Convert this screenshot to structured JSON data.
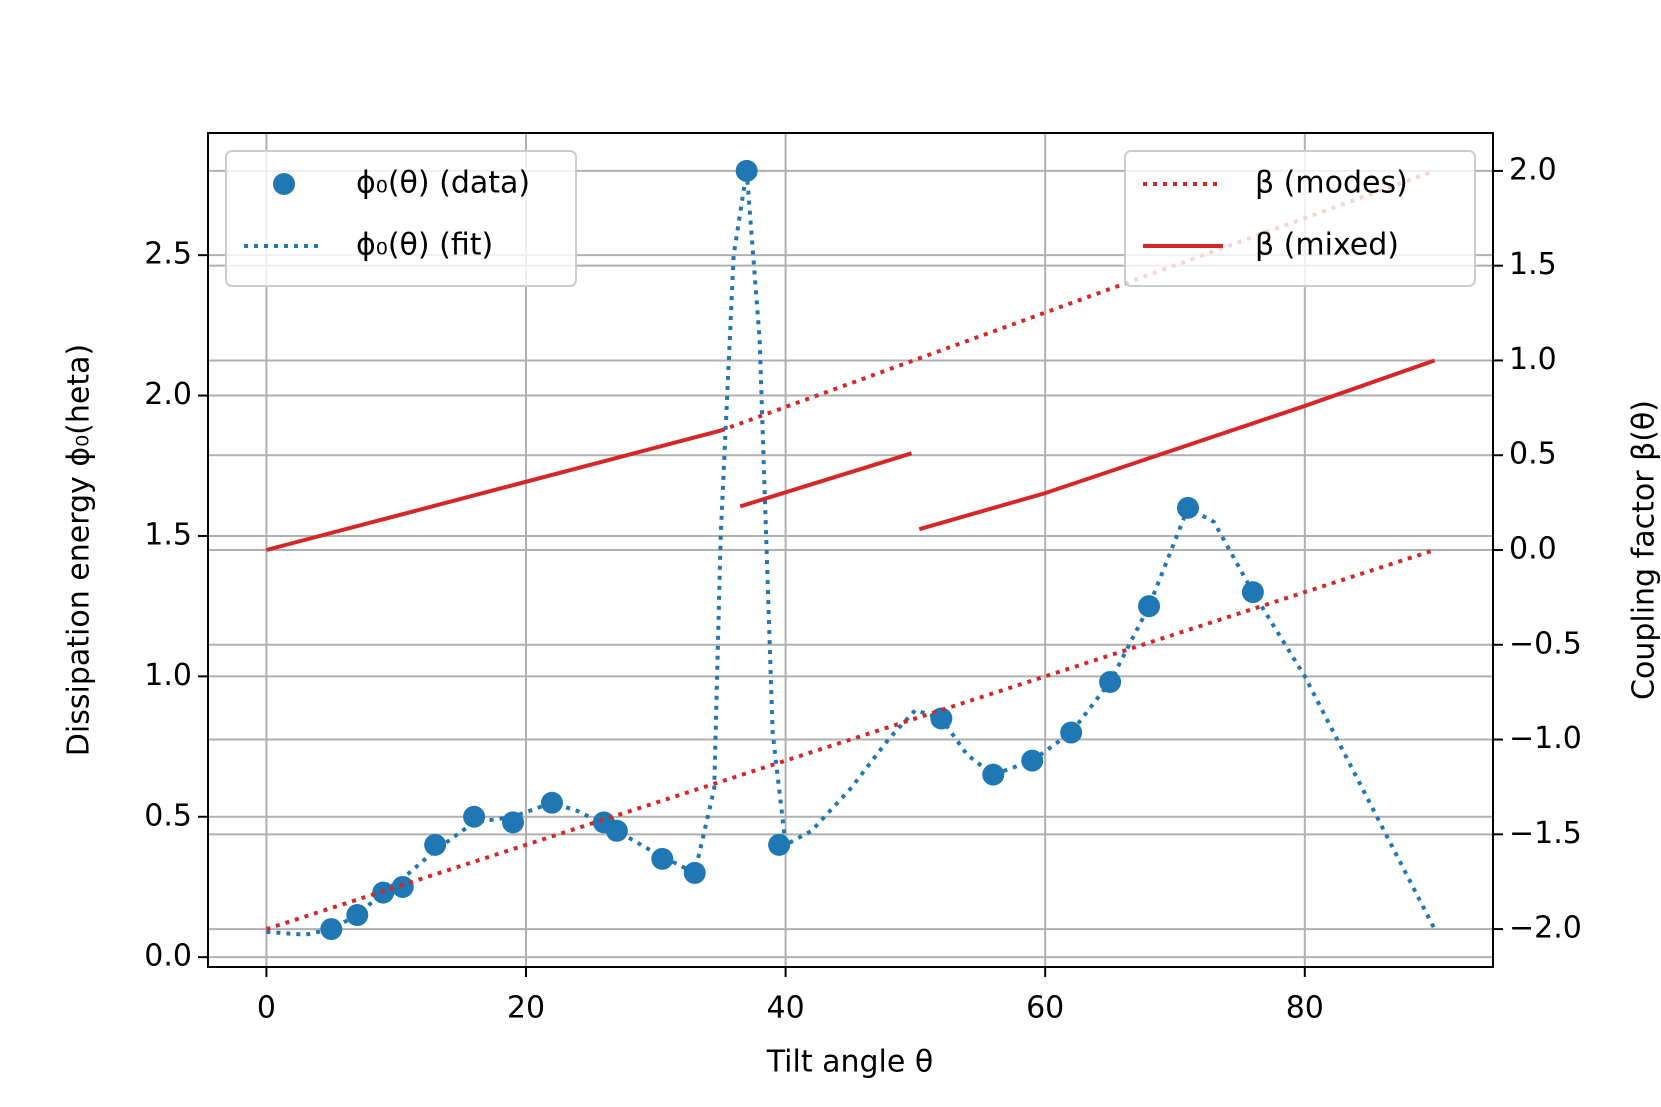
{
  "chart_data": {
    "type": "line",
    "xlabel": "Tilt angle θ",
    "ylabel": "Dissipation energy ϕ₀(heta)",
    "y2label": "Coupling factor β(θ)",
    "xlim": [
      -4.5,
      94.5
    ],
    "ylim": [
      -0.035,
      2.935
    ],
    "y2lim": [
      -2.2,
      2.2
    ],
    "xticks": [
      0,
      20,
      40,
      60,
      80
    ],
    "yticks": [
      {
        "value": 0,
        "label": "0.0"
      },
      0.5,
      {
        "value": 1,
        "label": "1.0"
      },
      1.5,
      {
        "value": 2,
        "label": "2.0"
      },
      2.5
    ],
    "y2ticks": [
      {
        "value": -2,
        "label": "−2.0"
      },
      {
        "value": -1.5,
        "label": "−1.5"
      },
      {
        "value": -1,
        "label": "−1.0"
      },
      {
        "value": -0.5,
        "label": "−0.5"
      },
      {
        "value": 0,
        "label": "0.0"
      },
      0.5,
      {
        "value": 1,
        "label": "1.0"
      },
      1.5,
      {
        "value": 2,
        "label": "2.0"
      }
    ],
    "grid": true,
    "legend": "upper left",
    "legend2": "upper right",
    "series": [
      {
        "name": "ϕ₀(θ) (data)",
        "color": "#1f77b4",
        "linestyle": "none",
        "marker": "o",
        "axis": "y",
        "x": [
          5,
          7,
          9,
          10.5,
          13,
          16,
          19,
          22,
          26,
          27,
          30.5,
          33,
          37,
          39.5,
          52,
          56,
          59,
          62,
          65,
          68,
          71,
          76
        ],
        "values": [
          0.1,
          0.15,
          0.23,
          0.25,
          0.4,
          0.5,
          0.48,
          0.55,
          0.48,
          0.45,
          0.35,
          0.3,
          2.8,
          0.4,
          0.85,
          0.65,
          0.7,
          0.8,
          0.98,
          1.25,
          1.6,
          1.3
        ]
      },
      {
        "name": "ϕ₀(θ) (fit)",
        "color": "#1f77b4",
        "linestyle": "dotted",
        "marker": "none",
        "axis": "y",
        "x": [
          0,
          3,
          5,
          7,
          9,
          11,
          13,
          16,
          19,
          22,
          24,
          27,
          30,
          33,
          34.5,
          35,
          36,
          37,
          38,
          39,
          40,
          42,
          45,
          48,
          50,
          52,
          54,
          56,
          59,
          62,
          65,
          68,
          71,
          73,
          76,
          80,
          85,
          90
        ],
        "values": [
          0.09,
          0.08,
          0.1,
          0.15,
          0.23,
          0.3,
          0.38,
          0.48,
          0.5,
          0.55,
          0.52,
          0.45,
          0.37,
          0.3,
          0.6,
          1.5,
          2.5,
          2.8,
          2.2,
          0.8,
          0.4,
          0.45,
          0.6,
          0.78,
          0.88,
          0.85,
          0.72,
          0.65,
          0.7,
          0.8,
          0.98,
          1.25,
          1.6,
          1.55,
          1.3,
          1.0,
          0.55,
          0.1
        ]
      },
      {
        "name": "β (modes)",
        "color": "#d62728",
        "linestyle": "dotted",
        "marker": "none",
        "axis": "y2",
        "x": [
          0,
          90,
          null,
          35,
          90
        ],
        "values": [
          -2.0,
          0.0,
          null,
          0.63,
          2.0
        ]
      },
      {
        "name": "β (mixed)",
        "color": "#d62728",
        "linestyle": "solid",
        "marker": "none",
        "axis": "y2",
        "x": [
          0,
          35,
          null,
          36.5,
          49.7,
          null,
          50.3,
          60,
          70,
          80,
          90
        ],
        "values": [
          0.0,
          0.63,
          null,
          0.23,
          0.51,
          null,
          0.11,
          0.3,
          0.53,
          0.76,
          1.0
        ]
      }
    ]
  }
}
